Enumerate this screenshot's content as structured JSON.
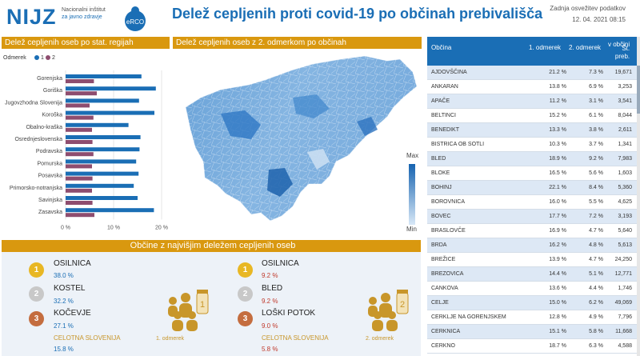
{
  "header": {
    "logo_text": "NIJZ",
    "logo_sub_1": "Nacionalni inštitut",
    "logo_sub_2": "za javno zdravje",
    "erco_text": "eRCO",
    "title": "Delež cepljenih proti covid-19 po občinah prebivališča",
    "refresh_label": "Zadnja osvežitev podatkov",
    "refresh_date": "12. 04. 2021 08:15"
  },
  "bar_section": {
    "title": "Delež cepljenih oseb po stat. regijah",
    "legend_title": "Odmerek",
    "legend_1": "1",
    "legend_2": "2"
  },
  "map_section": {
    "title": "Delež cepljenih oseb z 2. odmerkom po občinah",
    "legend_max": "Max",
    "legend_min": "Min"
  },
  "chart_data": {
    "type": "bar",
    "orientation": "horizontal",
    "categories": [
      "Gorenjska",
      "Goriška",
      "Jugovzhodna Slovenija",
      "Koroška",
      "Obalno-kraška",
      "Osrednjeslovenska",
      "Podravska",
      "Pomurska",
      "Posavska",
      "Primorsko-notranjska",
      "Savinjska",
      "Zasavska"
    ],
    "series": [
      {
        "name": "1",
        "color": "#1a6eb5",
        "values": [
          15.8,
          18.8,
          15.3,
          18.5,
          13.1,
          15.6,
          15.4,
          14.7,
          15.2,
          14.2,
          15.0,
          18.4
        ]
      },
      {
        "name": "2",
        "color": "#8e4d6f",
        "values": [
          5.9,
          6.5,
          5.0,
          5.8,
          5.5,
          5.6,
          5.8,
          5.5,
          5.6,
          5.5,
          5.6,
          6.0
        ]
      }
    ],
    "xticks": [
      "0 %",
      "10 %",
      "20 %"
    ],
    "xlim": [
      0,
      20
    ],
    "legend_position": "top-left"
  },
  "top_section": {
    "title": "Občine z najvišjim deležem cepljenih oseb",
    "dose1": {
      "ranks": [
        {
          "rank": "1",
          "name": "OSILNICA",
          "value": "38.0 %"
        },
        {
          "rank": "2",
          "name": "KOSTEL",
          "value": "32.2 %"
        },
        {
          "rank": "3",
          "name": "KOČEVJE",
          "value": "27.1 %"
        }
      ],
      "slovenia_label": "CELOTNA SLOVENIJA",
      "slovenia_value": "15.8 %",
      "dose_label": "1. odmerek",
      "badge": "1"
    },
    "dose2": {
      "ranks": [
        {
          "rank": "1",
          "name": "OSILNICA",
          "value": "9.2 %"
        },
        {
          "rank": "2",
          "name": "BLED",
          "value": "9.2 %"
        },
        {
          "rank": "3",
          "name": "LOŠKI POTOK",
          "value": "9.0 %"
        }
      ],
      "slovenia_label": "CELOTNA SLOVENIJA",
      "slovenia_value": "5.8 %",
      "dose_label": "2. odmerek",
      "badge": "2"
    }
  },
  "table": {
    "headers": {
      "municipality": "Občina",
      "dose1": "1. odmerek",
      "dose2": "2. odmerek",
      "pop_1": "Št. preb.",
      "pop_2": "v občini"
    },
    "rows": [
      {
        "name": "AJDOVŠČINA",
        "d1": "21.2 %",
        "d2": "7.3 %",
        "pop": "19,671"
      },
      {
        "name": "ANKARAN",
        "d1": "13.8 %",
        "d2": "6.9 %",
        "pop": "3,253"
      },
      {
        "name": "APAČE",
        "d1": "11.2 %",
        "d2": "3.1 %",
        "pop": "3,541"
      },
      {
        "name": "BELTINCI",
        "d1": "15.2 %",
        "d2": "6.1 %",
        "pop": "8,044"
      },
      {
        "name": "BENEDIKT",
        "d1": "13.3 %",
        "d2": "3.8 %",
        "pop": "2,611"
      },
      {
        "name": "BISTRICA OB SOTLI",
        "d1": "10.3 %",
        "d2": "3.7 %",
        "pop": "1,341"
      },
      {
        "name": "BLED",
        "d1": "18.9 %",
        "d2": "9.2 %",
        "pop": "7,983"
      },
      {
        "name": "BLOKE",
        "d1": "16.5 %",
        "d2": "5.6 %",
        "pop": "1,603"
      },
      {
        "name": "BOHINJ",
        "d1": "22.1 %",
        "d2": "8.4 %",
        "pop": "5,360"
      },
      {
        "name": "BOROVNICA",
        "d1": "16.0 %",
        "d2": "5.5 %",
        "pop": "4,625"
      },
      {
        "name": "BOVEC",
        "d1": "17.7 %",
        "d2": "7.2 %",
        "pop": "3,193"
      },
      {
        "name": "BRASLOVČE",
        "d1": "16.9 %",
        "d2": "4.7 %",
        "pop": "5,640"
      },
      {
        "name": "BRDA",
        "d1": "16.2 %",
        "d2": "4.8 %",
        "pop": "5,613"
      },
      {
        "name": "BREŽICE",
        "d1": "13.9 %",
        "d2": "4.7 %",
        "pop": "24,250"
      },
      {
        "name": "BREZOVICA",
        "d1": "14.4 %",
        "d2": "5.1 %",
        "pop": "12,771"
      },
      {
        "name": "CANKOVA",
        "d1": "13.6 %",
        "d2": "4.4 %",
        "pop": "1,746"
      },
      {
        "name": "CELJE",
        "d1": "15.0 %",
        "d2": "6.2 %",
        "pop": "49,069"
      },
      {
        "name": "CERKLJE NA GORENJSKEM",
        "d1": "12.8 %",
        "d2": "4.9 %",
        "pop": "7,796"
      },
      {
        "name": "CERKNICA",
        "d1": "15.1 %",
        "d2": "5.8 %",
        "pop": "11,668"
      },
      {
        "name": "CERKNO",
        "d1": "18.7 %",
        "d2": "6.3 %",
        "pop": "4,588"
      }
    ]
  },
  "colors": {
    "accent": "#1a6eb5",
    "section_header": "#d9980f",
    "dose2_bar": "#8e4d6f",
    "panel_bg": "#edf2f8"
  }
}
